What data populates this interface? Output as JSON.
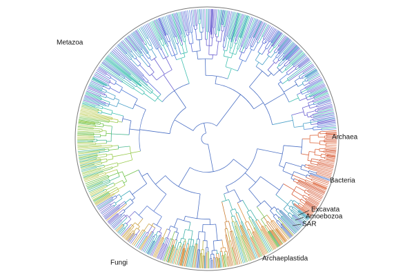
{
  "clades": [
    "Metazoa",
    "Archaea",
    "Bacteria",
    "Excavata",
    "Amoebozoa",
    "SAR",
    "Archaeplastida",
    "Fungi"
  ]
}
